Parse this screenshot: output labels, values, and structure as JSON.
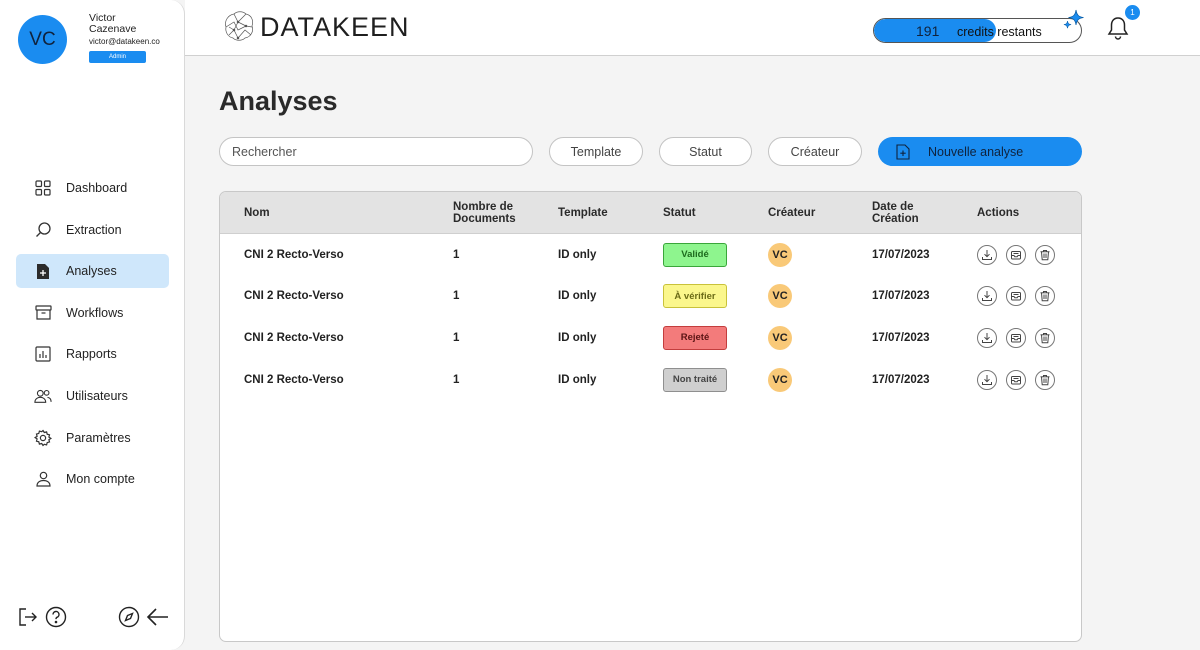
{
  "user": {
    "initials": "VC",
    "first_name": "Victor",
    "last_name": "Cazenave",
    "email": "victor@datakeen.co",
    "role": "Admin"
  },
  "sidebar": {
    "items": [
      {
        "label": "Dashboard",
        "icon": "grid-icon",
        "active": false
      },
      {
        "label": "Extraction",
        "icon": "search-icon",
        "active": false
      },
      {
        "label": "Analyses",
        "icon": "document-plus-icon",
        "active": true
      },
      {
        "label": "Workflows",
        "icon": "archive-box-icon",
        "active": false
      },
      {
        "label": "Rapports",
        "icon": "bar-chart-icon",
        "active": false
      },
      {
        "label": "Utilisateurs",
        "icon": "users-icon",
        "active": false
      },
      {
        "label": "Paramètres",
        "icon": "gear-icon",
        "active": false
      },
      {
        "label": "Mon compte",
        "icon": "user-icon",
        "active": false
      }
    ],
    "bottom_icons": [
      "logout-icon",
      "help-icon",
      "compass-icon",
      "arrow-left-icon"
    ]
  },
  "header": {
    "logo_text": "DATAKEEN",
    "credits_value": "191",
    "credits_label": "credits restants",
    "credits_fill_fraction": 0.59,
    "notifications_count": "1"
  },
  "main": {
    "title": "Analyses",
    "search_placeholder": "Rechercher",
    "filters": [
      "Template",
      "Statut",
      "Créateur"
    ],
    "new_button_label": "Nouvelle analyse"
  },
  "table": {
    "columns": [
      "Nom",
      "Nombre de Documents",
      "Template",
      "Statut",
      "Créateur",
      "Date de Création",
      "Actions"
    ],
    "rows": [
      {
        "name": "CNI 2 Recto-Verso",
        "documents": "1",
        "template": "ID only",
        "status": "Validé",
        "status_color": "#8ef58e",
        "status_border": "#3aa63a",
        "status_text": "#1d6b1d",
        "creator": "VC",
        "date": "17/07/2023"
      },
      {
        "name": "CNI 2 Recto-Verso",
        "documents": "1",
        "template": "ID only",
        "status": "À vérifier",
        "status_color": "#fbf78c",
        "status_border": "#c9c23a",
        "status_text": "#6b6b16",
        "creator": "VC",
        "date": "17/07/2023"
      },
      {
        "name": "CNI 2 Recto-Verso",
        "documents": "1",
        "template": "ID only",
        "status": "Rejeté",
        "status_color": "#f37b7b",
        "status_border": "#c33d3d",
        "status_text": "#5a1414",
        "creator": "VC",
        "date": "17/07/2023"
      },
      {
        "name": "CNI 2 Recto-Verso",
        "documents": "1",
        "template": "ID only",
        "status": "Non traité",
        "status_color": "#cfcfcf",
        "status_border": "#8f8f8f",
        "status_text": "#444444",
        "creator": "VC",
        "date": "17/07/2023"
      }
    ],
    "action_icons": [
      "download-icon",
      "inbox-icon",
      "trash-icon"
    ]
  },
  "colors": {
    "accent": "#1a8cf0",
    "active_nav": "#cfe7fb",
    "avatar_row": "#f9c978"
  }
}
